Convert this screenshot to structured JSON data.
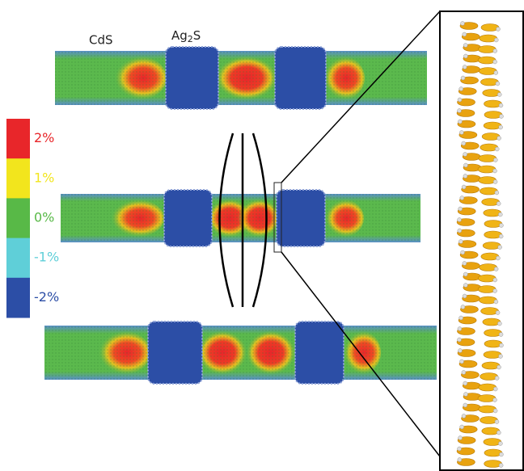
{
  "labels": {
    "cds": "CdS",
    "ag2s": [
      "Ag",
      "2",
      "S"
    ]
  },
  "colorbar": [
    {
      "label": "2%",
      "color": "#e8262a"
    },
    {
      "label": "1%",
      "color": "#f2e51d"
    },
    {
      "label": "0%",
      "color": "#58b947"
    },
    {
      "label": "-1%",
      "color": "#5fcfd8"
    },
    {
      "label": "-2%",
      "color": "#2c4ea6"
    }
  ]
}
